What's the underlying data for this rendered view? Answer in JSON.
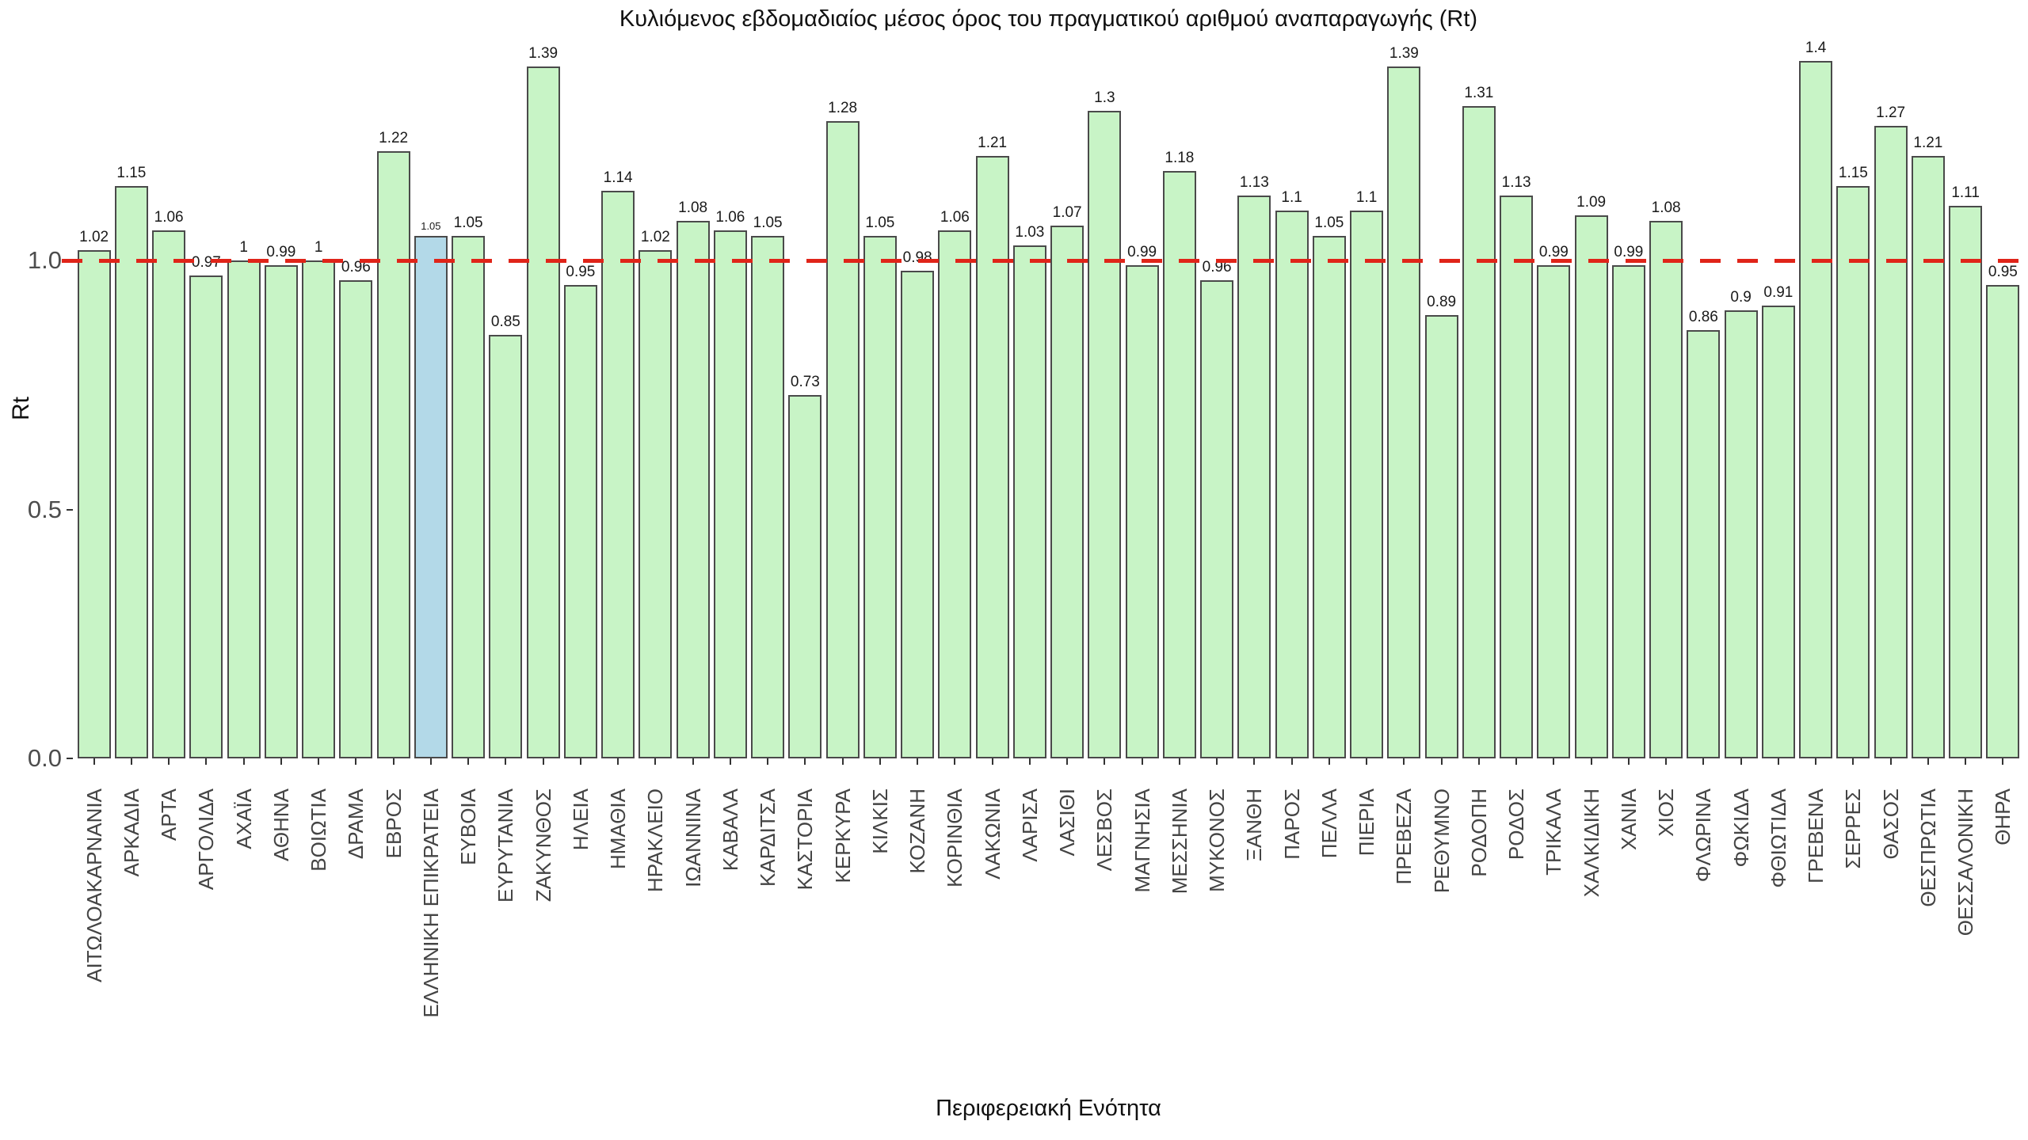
{
  "chart_data": {
    "type": "bar",
    "title": "Κυλιόμενος εβδομαδιαίος μέσος όρος του πραγματικού αριθμού αναπαραγωγής (Rt)",
    "xlabel": "Περιφερειακή Ενότητα",
    "ylabel": "Rt",
    "ylim": [
      0,
      1.45
    ],
    "yticks": [
      "0.0",
      "0.5",
      "1.0"
    ],
    "grid": "off",
    "legend": "none",
    "reference_line": {
      "value": 1.0,
      "style": "dashed",
      "color": "#e02419"
    },
    "colors": {
      "bar_fill": "#c8f4c6",
      "bar_highlight_fill": "#b3d9e8",
      "bar_border": "#4a4a4a",
      "tick_text": "#4d4d4d",
      "value_text": "#1a1a1a"
    },
    "highlight_category": "ΕΛΛΗΝΙΚΗ ΕΠΙΚΡΑΤΕΙΑ",
    "categories": [
      "ΑΙΤΩΛΟΑΚΑΡΝΑΝΙΑ",
      "ΑΡΚΑΔΙΑ",
      "ΑΡΤΑ",
      "ΑΡΓΟΛΙΔΑ",
      "ΑΧΑΪΑ",
      "ΑΘΗΝΑ",
      "ΒΟΙΩΤΙΑ",
      "ΔΡΑΜΑ",
      "ΕΒΡΟΣ",
      "ΕΛΛΗΝΙΚΗ ΕΠΙΚΡΑΤΕΙΑ",
      "ΕΥΒΟΙΑ",
      "ΕΥΡΥΤΑΝΙΑ",
      "ΖΑΚΥΝΘΟΣ",
      "ΗΛΕΙΑ",
      "ΗΜΑΘΙΑ",
      "ΗΡΑΚΛΕΙΟ",
      "ΙΩΑΝΝΙΝΑ",
      "ΚΑΒΑΛΑ",
      "ΚΑΡΔΙΤΣΑ",
      "ΚΑΣΤΟΡΙΑ",
      "ΚΕΡΚΥΡΑ",
      "ΚΙΛΚΙΣ",
      "ΚΟΖΑΝΗ",
      "ΚΟΡΙΝΘΙΑ",
      "ΛΑΚΩΝΙΑ",
      "ΛΑΡΙΣΑ",
      "ΛΑΣΙΘΙ",
      "ΛΕΣΒΟΣ",
      "ΜΑΓΝΗΣΙΑ",
      "ΜΕΣΣΗΝΙΑ",
      "ΜΥΚΟΝΟΣ",
      "ΞΑΝΘΗ",
      "ΠΑΡΟΣ",
      "ΠΕΛΛΑ",
      "ΠΙΕΡΙΑ",
      "ΠΡΕΒΕΖΑ",
      "ΡΕΘΥΜΝΟ",
      "ΡΟΔΟΠΗ",
      "ΡΟΔΟΣ",
      "ΤΡΙΚΑΛΑ",
      "ΧΑΛΚΙΔΙΚΗ",
      "ΧΑΝΙΑ",
      "ΧΙΟΣ",
      "ΦΛΩΡΙΝΑ",
      "ΦΩΚΙΔΑ",
      "ΦΘΙΩΤΙΔΑ",
      "ΓΡΕΒΕΝΑ",
      "ΣΕΡΡΕΣ",
      "ΘΑΣΟΣ",
      "ΘΕΣΠΡΩΤΙΑ",
      "ΘΕΣΣΑΛΟΝΙΚΗ",
      "ΘΗΡΑ"
    ],
    "values": [
      1.02,
      1.15,
      1.06,
      0.97,
      1,
      0.99,
      1,
      0.96,
      1.22,
      1.05,
      1.05,
      0.85,
      1.39,
      0.95,
      1.14,
      1.02,
      1.08,
      1.06,
      1.05,
      0.73,
      1.28,
      1.05,
      0.98,
      1.06,
      1.21,
      1.03,
      1.07,
      1.3,
      0.99,
      1.18,
      0.96,
      1.13,
      1.1,
      1.05,
      1.1,
      1.39,
      0.89,
      1.31,
      1.13,
      0.99,
      1.09,
      0.99,
      1.08,
      0.86,
      0.9,
      0.91,
      1.4,
      1.15,
      1.27,
      1.21,
      1.11,
      0.95
    ],
    "value_labels": [
      "1.02",
      "1.15",
      "1.06",
      "0.97",
      "1",
      "0.99",
      "1",
      "0.96",
      "1.22",
      "1.05",
      "1.05",
      "0.85",
      "1.39",
      "0.95",
      "1.14",
      "1.02",
      "1.08",
      "1.06",
      "1.05",
      "0.73",
      "1.28",
      "1.05",
      "0.98",
      "1.06",
      "1.21",
      "1.03",
      "1.07",
      "1.3",
      "0.99",
      "1.18",
      "0.96",
      "1.13",
      "1.1",
      "1.05",
      "1.1",
      "1.39",
      "0.89",
      "1.31",
      "1.13",
      "0.99",
      "1.09",
      "0.99",
      "1.08",
      "0.86",
      "0.9",
      "0.91",
      "1.4",
      "1.15",
      "1.27",
      "1.21",
      "1.11",
      "0.95"
    ]
  }
}
